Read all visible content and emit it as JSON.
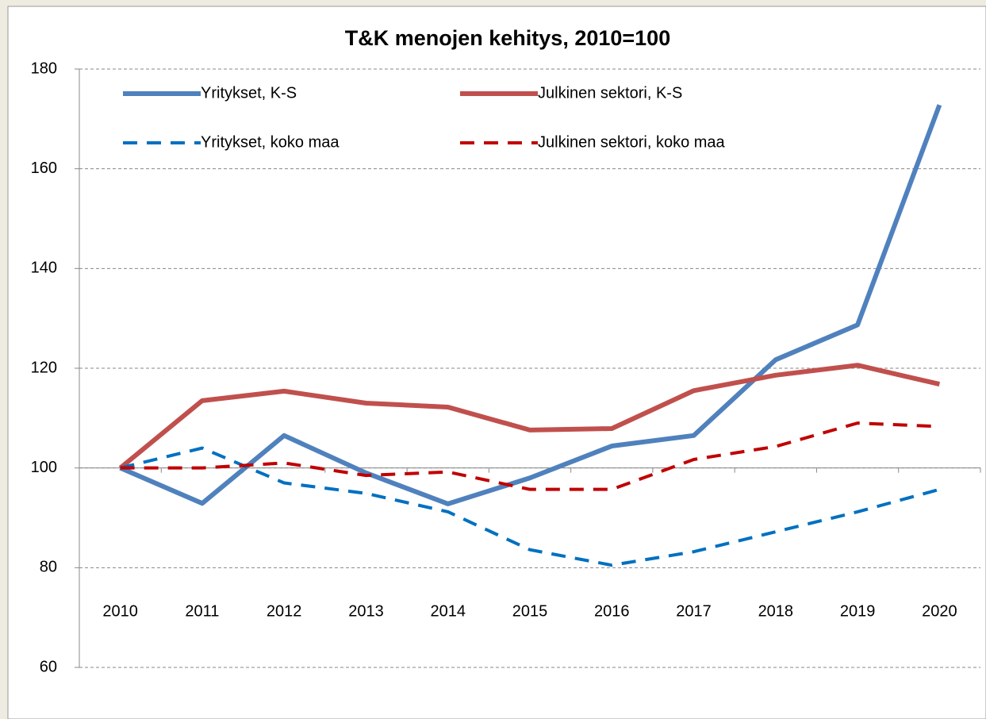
{
  "chart_data": {
    "type": "line",
    "title": "T&K menojen kehitys, 2010=100",
    "categories": [
      "2010",
      "2011",
      "2012",
      "2013",
      "2014",
      "2015",
      "2016",
      "2017",
      "2018",
      "2019",
      "2020"
    ],
    "series": [
      {
        "name": "Yritykset, K-S",
        "color": "#4f81bd",
        "dashed": false,
        "values": [
          100,
          92.9,
          106.5,
          99,
          92.8,
          98,
          104.4,
          106.5,
          121.7,
          128.7,
          172.8
        ]
      },
      {
        "name": "Julkinen sektori, K-S",
        "color": "#c0504d",
        "dashed": false,
        "values": [
          100,
          113.5,
          115.4,
          113,
          112.2,
          107.6,
          107.9,
          115.5,
          118.6,
          120.6,
          116.8
        ]
      },
      {
        "name": "Yritykset, koko maa",
        "color": "#0070c0",
        "dashed": true,
        "values": [
          100,
          104,
          97,
          94.9,
          91.2,
          83.6,
          80.5,
          83.2,
          87.2,
          91.2,
          95.7
        ]
      },
      {
        "name": "Julkinen sektori, koko maa",
        "color": "#c00000",
        "dashed": true,
        "values": [
          100,
          100,
          101,
          98.5,
          99.2,
          95.7,
          95.7,
          101.7,
          104.3,
          109,
          108.3
        ]
      }
    ],
    "ylim": [
      60,
      180
    ],
    "yticks": [
      60,
      80,
      100,
      120,
      140,
      160,
      180
    ],
    "grid": true,
    "x_axis_crosses": 100
  }
}
